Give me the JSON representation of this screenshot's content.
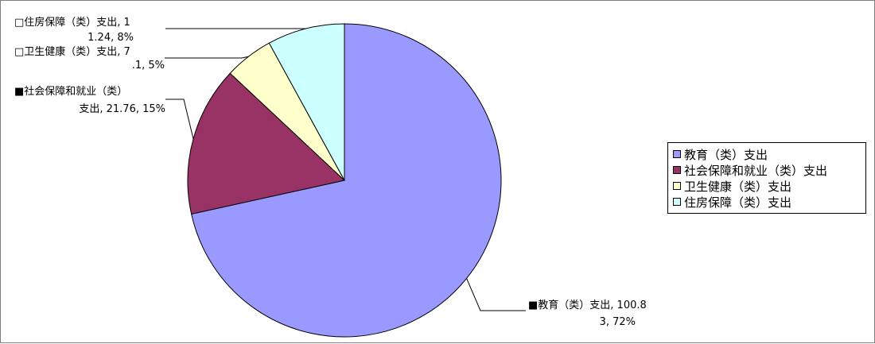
{
  "chart_data": {
    "type": "pie",
    "categories": [
      "教育（类）支出",
      "社会保障和就业（类）支出",
      "卫生健康（类）支出",
      "住房保障（类）支出"
    ],
    "values": [
      100.83,
      21.76,
      7.1,
      11.24
    ],
    "percentages": [
      72,
      15,
      5,
      8
    ],
    "colors": [
      "#9999ff",
      "#993366",
      "#ffffcc",
      "#ccffff"
    ],
    "start_angle_deg": 0,
    "direction": "clockwise",
    "data_labels": [
      [
        "■教育（类）支出, 100.8",
        "3, 72%"
      ],
      [
        "■社会保障和就业（类）",
        "支出, 21.76, 15%"
      ],
      [
        "□卫生健康（类）支出, 7",
        ".1, 5%"
      ],
      [
        "□住房保障（类）支出, 1",
        "1.24, 8%"
      ]
    ],
    "legend_position": "right"
  }
}
